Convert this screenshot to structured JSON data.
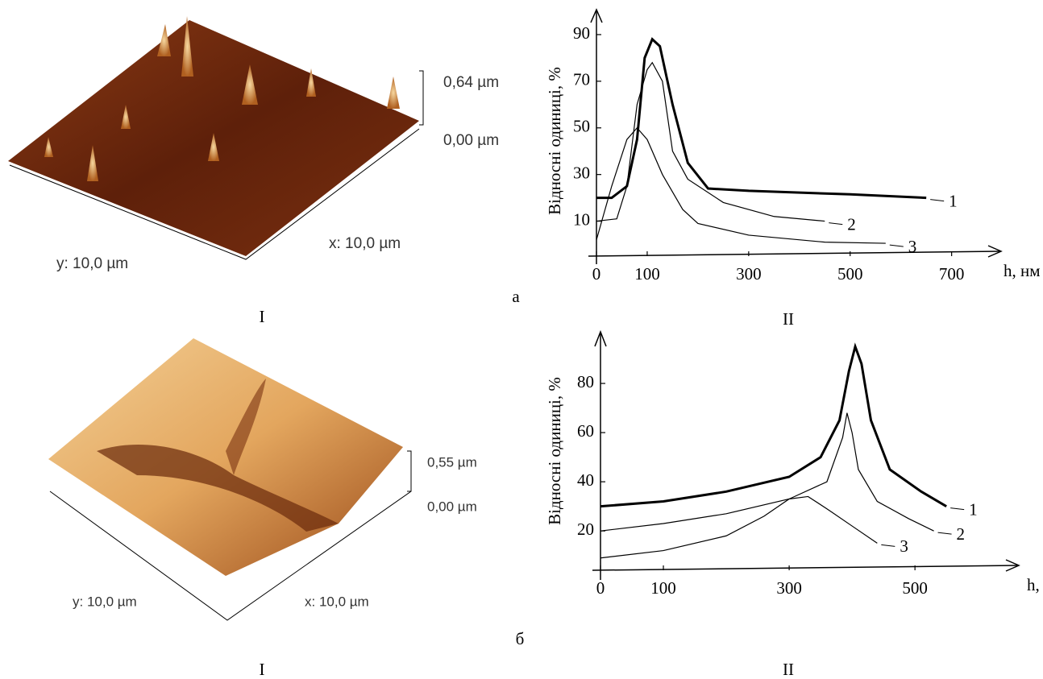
{
  "chart_data": [
    {
      "type": "line",
      "y_label": "Відносні одиниці, %",
      "x_label": "h, нм",
      "xlim": [
        0,
        780
      ],
      "ylim": [
        -5,
        100
      ],
      "xticks": [
        0,
        100,
        300,
        500,
        700
      ],
      "yticks": [
        10,
        30,
        50,
        70,
        90
      ],
      "series": [
        {
          "name": "1",
          "color": "#000000",
          "x": [
            0,
            30,
            60,
            80,
            95,
            110,
            125,
            150,
            180,
            220,
            300,
            500,
            650
          ],
          "values": [
            20,
            20,
            25,
            45,
            80,
            88,
            85,
            60,
            35,
            24,
            23,
            21.5,
            20
          ]
        },
        {
          "name": "2",
          "color": "#000000",
          "x": [
            0,
            40,
            60,
            80,
            100,
            110,
            130,
            150,
            180,
            250,
            350,
            450
          ],
          "values": [
            10,
            11,
            25,
            60,
            75,
            78,
            70,
            40,
            28,
            18,
            12,
            10
          ]
        },
        {
          "name": "3",
          "color": "#000000",
          "x": [
            0,
            30,
            60,
            80,
            100,
            130,
            170,
            200,
            300,
            450,
            570
          ],
          "values": [
            2,
            25,
            45,
            50,
            45,
            30,
            15,
            9,
            4,
            1,
            0.5
          ]
        }
      ]
    },
    {
      "type": "line",
      "y_label": "Відносні одиниці, %",
      "x_label": "h, нм",
      "xlim": [
        0,
        660
      ],
      "ylim": [
        4,
        100
      ],
      "xticks": [
        0,
        100,
        300,
        500
      ],
      "yticks": [
        20,
        40,
        60,
        80
      ],
      "series": [
        {
          "name": "1",
          "color": "#000000",
          "x": [
            0,
            100,
            200,
            300,
            350,
            380,
            395,
            405,
            415,
            430,
            460,
            510,
            550
          ],
          "values": [
            30,
            32,
            36,
            42,
            50,
            65,
            85,
            95,
            88,
            65,
            45,
            36,
            30
          ]
        },
        {
          "name": "2",
          "color": "#000000",
          "x": [
            0,
            100,
            200,
            300,
            360,
            385,
            392,
            400,
            410,
            440,
            490,
            530
          ],
          "values": [
            20,
            23,
            27,
            33,
            40,
            58,
            68,
            60,
            45,
            32,
            25,
            20
          ]
        },
        {
          "name": "3",
          "color": "#000000",
          "x": [
            0,
            100,
            200,
            260,
            300,
            330,
            360,
            400,
            440
          ],
          "values": [
            9,
            12,
            18,
            26,
            33,
            34,
            29,
            22,
            15
          ]
        }
      ]
    }
  ],
  "afm": [
    {
      "scale_top": "0,64 µm",
      "scale_bottom": "0,00 µm",
      "x_size": "x: 10,0 µm",
      "y_size": "y: 10,0 µm"
    },
    {
      "scale_top": "0,55 µm",
      "scale_bottom": "0,00 µm",
      "x_size": "x: 10,0 µm",
      "y_size": "y: 10,0 µm"
    }
  ],
  "panels": {
    "a": "а",
    "b": "б",
    "left_a": "I",
    "right_a": "II",
    "left_b": "I",
    "right_b": "II"
  }
}
